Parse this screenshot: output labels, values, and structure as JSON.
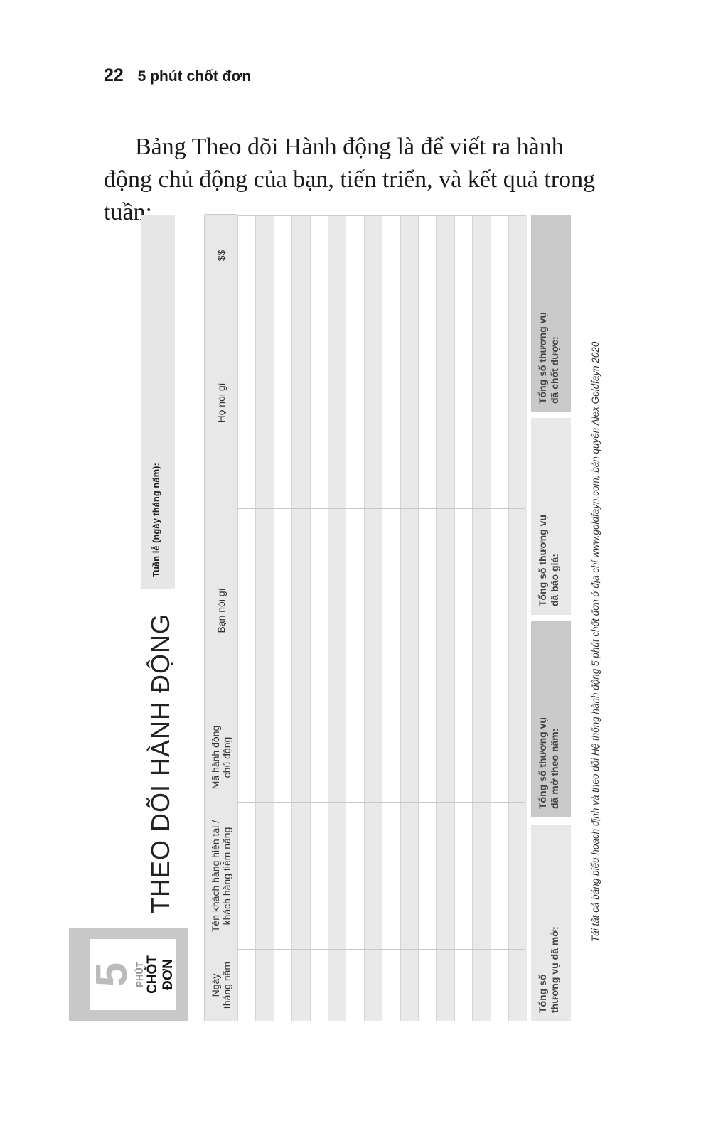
{
  "running_header": {
    "page_number": "22",
    "book_title": "5 phút chốt đơn"
  },
  "intro": "Bảng Theo dõi Hành động là để viết ra hành động chủ động của bạn, tiến triển, và kết quả trong tuần:",
  "logo": {
    "number": "5",
    "line1": "PHÚT",
    "line2": "CHỐT ĐƠN"
  },
  "form": {
    "title": "THEO DÕI HÀNH ĐỘNG",
    "week_label": "Tuần lễ (ngày tháng năm):",
    "columns": [
      "Ngày\ntháng năm",
      "Tên khách hàng hiện tại /\nkhách hàng tiềm năng",
      "Mã hành động\nchủ động",
      "Bạn nói gì",
      "Họ nói gì",
      "$$"
    ],
    "row_count": 16,
    "summary": [
      "Tổng số\nthương vụ đã mở:",
      "Tổng số thương vụ\nđã mở theo năm:",
      "Tổng số thương vụ\nđã báo giá:",
      "Tổng số thương vụ\nđã chốt được:"
    ],
    "footer": "Tải tất cả bảng biểu hoạch định và theo dõi Hệ thống hành động 5 phút chốt đơn ở địa chỉ www.goldfayn.com, bản quyền Alex Goldfayn 2020"
  }
}
